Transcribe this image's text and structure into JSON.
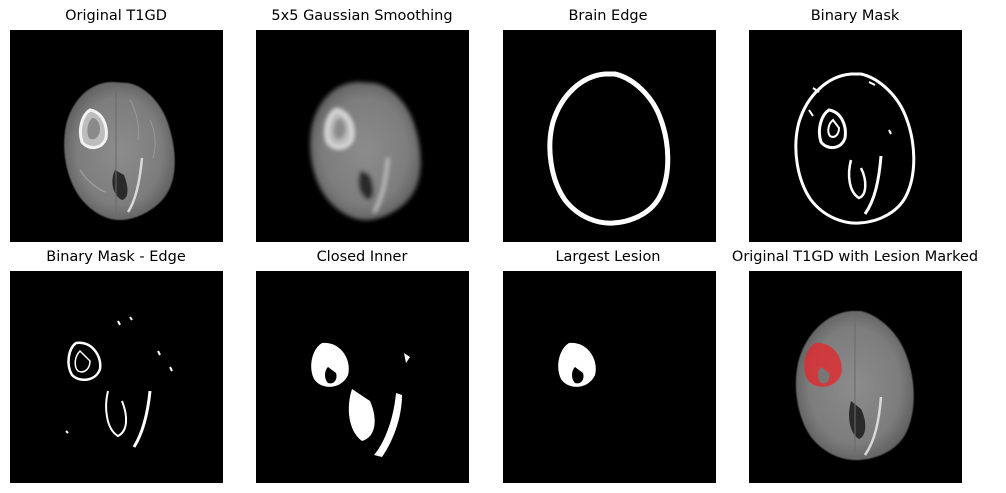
{
  "panels": [
    {
      "title": "Original T1GD"
    },
    {
      "title": "5x5 Gaussian Smoothing"
    },
    {
      "title": "Brain Edge"
    },
    {
      "title": "Binary Mask"
    },
    {
      "title": "Binary Mask - Edge"
    },
    {
      "title": "Closed Inner"
    },
    {
      "title": "Largest Lesion"
    },
    {
      "title": "Original T1GD with Lesion Marked"
    }
  ],
  "colors": {
    "background": "#000000",
    "mask": "#ffffff",
    "lesion_overlay": "#e8242a"
  }
}
